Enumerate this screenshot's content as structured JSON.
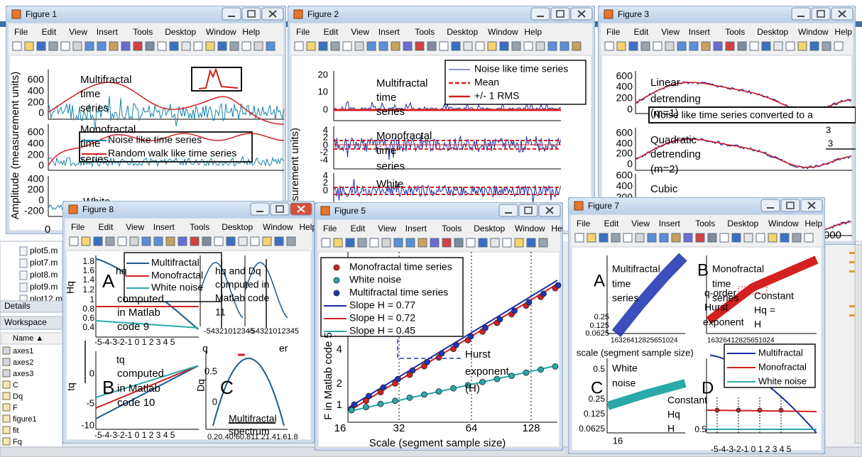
{
  "menu": [
    "File",
    "Edit",
    "View",
    "Insert",
    "Tools",
    "Desktop",
    "Window",
    "Help"
  ],
  "background": {
    "files": [
      "plot5.m",
      "plot7.m",
      "plot8.m",
      "plot9.m",
      "plot12.m"
    ],
    "details": "Details",
    "workspace": "Workspace",
    "name_header": "Name ▲",
    "vars": [
      "axes1",
      "axes2",
      "axes3",
      "C",
      "Dq",
      "F",
      "figure1",
      "fit",
      "Fq"
    ]
  },
  "windows": [
    {
      "title": "Figure 1",
      "texts": [
        "Amplitude (measurement units)",
        "600",
        "400",
        "200",
        "0",
        "600",
        "400",
        "200",
        "0",
        "400",
        "200",
        "0",
        "-200",
        "0",
        "Multifractal",
        "time",
        "series",
        "Monofractal",
        "time",
        "series",
        "White",
        "Noise like time series",
        "Random walk like time series"
      ]
    },
    {
      "title": "Figure 2",
      "texts": [
        "easurement units)",
        "20",
        "10",
        "0",
        "4",
        "2",
        "0",
        "-2",
        "-4",
        "4",
        "2",
        "0",
        "Multifractal",
        "time",
        "series",
        "Monofractal",
        "time",
        "series",
        "White",
        "Noise like time series",
        "Mean",
        "+/- 1 RMS"
      ]
    },
    {
      "title": "Figure 3",
      "texts": [
        "600",
        "400",
        "200",
        "0",
        "600",
        "400",
        "200",
        "0",
        "600",
        "400",
        "200",
        "Linear",
        "detrending",
        "(m=1)",
        "Quadratic",
        "detrending",
        "(m=2)",
        "Cubic",
        "Noise like time series converted to a",
        "3",
        "3",
        "000"
      ]
    },
    {
      "title": "Figure 8",
      "texts": [
        "Hq",
        "1.8",
        "1.6",
        "1.4",
        "1.2",
        "1",
        "0.8",
        "0.6",
        "0.4",
        "A",
        "hq",
        "computed",
        "in Matlab",
        "code 9",
        "Multifractal",
        "Monofractal",
        "White noise",
        "hq and Dq",
        "computed in",
        "Matlab code",
        "11",
        "-5-4-3-2-1 0 1 2 3 4 5",
        "-54321012345",
        "-54321012345",
        "q",
        "er",
        "tq",
        "0",
        "-5",
        "-10",
        "B",
        "tq",
        "computed",
        "in Matlab",
        "code 10",
        "-5-4-3-2-1 0 1 2 3 4 5",
        "Dq",
        "0.5",
        "0",
        "C",
        "Multifractal",
        "spectrum",
        "0.20.40.60.811.21.41.61.8"
      ]
    },
    {
      "title": "Figure 5",
      "texts": [
        "Monofractal time series",
        "White noise",
        "Multifractal time series",
        "Slope H = 0.77",
        "Slope H = 0.72",
        "Slope H = 0.45",
        "F in Matlab code 5",
        "4",
        "2",
        "1",
        "Hurst",
        "exponent",
        "(H)",
        "16",
        "32",
        "64",
        "128",
        "Scale (segment sample size)"
      ]
    },
    {
      "title": "Figure 7",
      "texts": [
        "A",
        "Multifractal",
        "time",
        "series",
        "0.25",
        "0.125",
        "0.0625",
        "16326412825651024",
        "q-order",
        "Hurst",
        "exponent",
        "B",
        "Monofractal",
        "time",
        "series",
        "Constant",
        "Hq =",
        "H",
        "16326412825651024",
        "scale (segment sample size)",
        "Multifractal",
        "Monofractal",
        "White noise",
        "C",
        "White",
        "noise",
        "0.5",
        "0.25",
        "0.125",
        "0.0625",
        "16",
        "Constant",
        "Hq",
        "H",
        "D",
        "0.5",
        "-5-4-3-2-1 0 1 2 3 4 5"
      ]
    }
  ]
}
